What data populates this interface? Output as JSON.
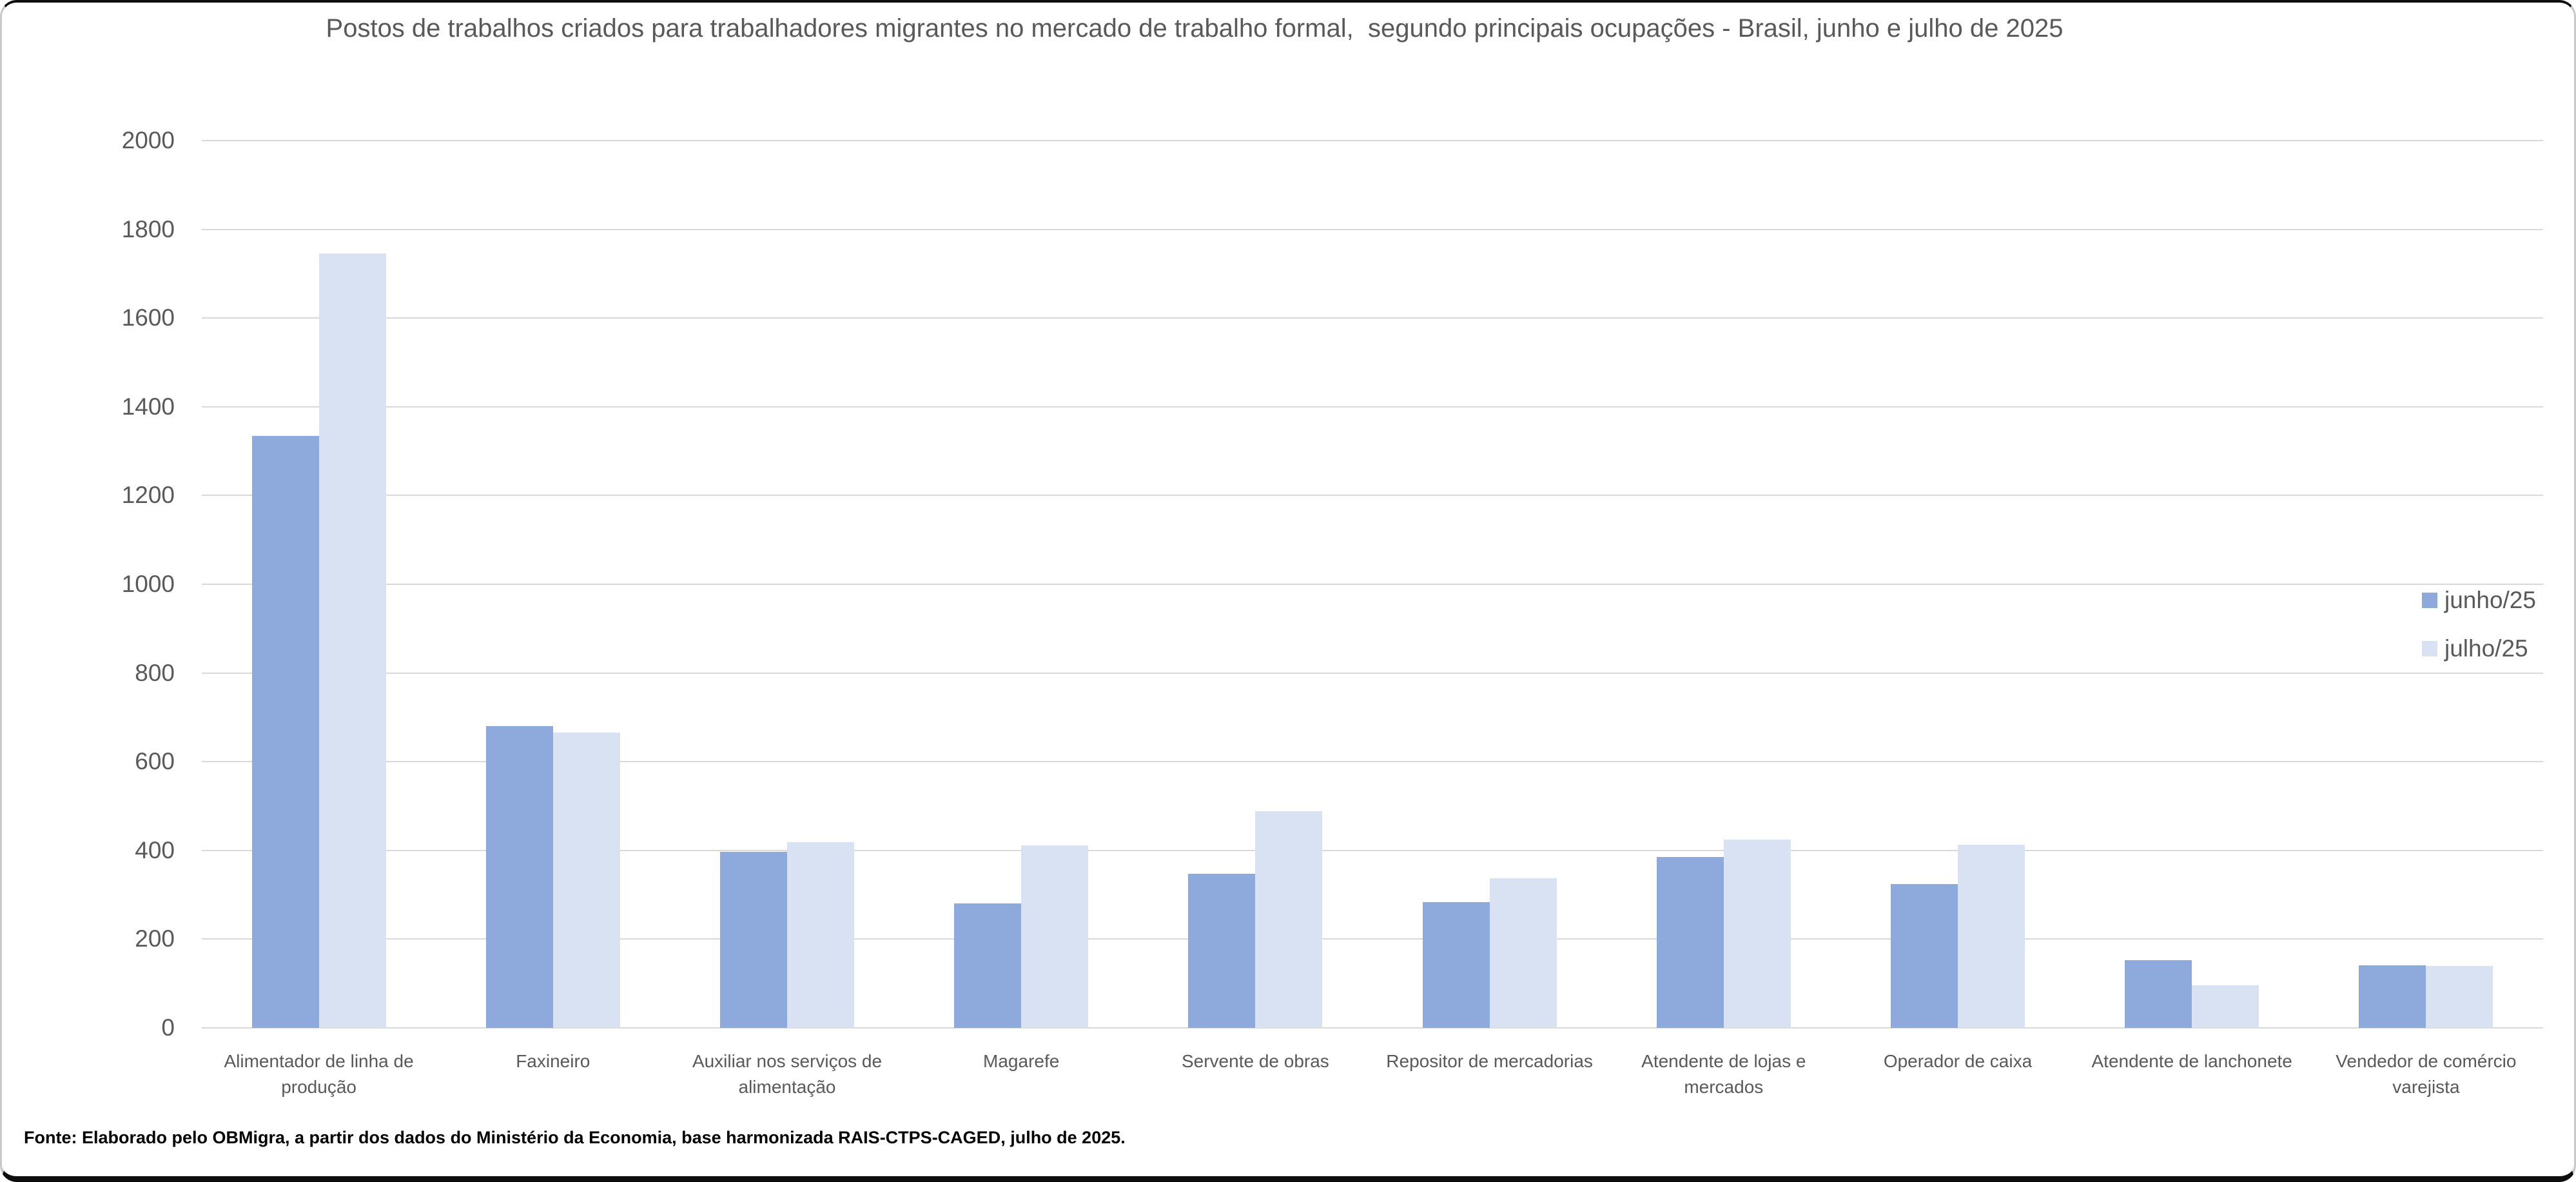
{
  "chart_data": {
    "type": "bar",
    "title": "Postos de trabalhos criados para trabalhadores migrantes no mercado de trabalho formal,  segundo principais ocupações - Brasil, junho e julho de 2025",
    "categories": [
      "Alimentador de linha de produção",
      "Faxineiro",
      "Auxiliar nos serviços de alimentação",
      "Magarefe",
      "Servente de obras",
      "Repositor de mercadorias",
      "Atendente de lojas e mercados",
      "Operador de caixa",
      "Atendente de lanchonete",
      "Vendedor de comércio varejista"
    ],
    "series": [
      {
        "name": "junho/25",
        "color": "#8EA9DB",
        "values": [
          1334,
          680,
          397,
          281,
          347,
          283,
          385,
          324,
          152,
          141
        ]
      },
      {
        "name": "julho/25",
        "color": "#D9E2F3",
        "values": [
          1745,
          666,
          419,
          412,
          488,
          337,
          425,
          413,
          96,
          140
        ]
      }
    ],
    "ylim": [
      0,
      2000
    ],
    "y_ticks": [
      0,
      200,
      400,
      600,
      800,
      1000,
      1200,
      1400,
      1600,
      1800,
      2000
    ],
    "grid": true,
    "legend_position": "right",
    "gridline_color": "#d9d9d9",
    "text_color": "#595959",
    "source_note": "Fonte: Elaborado pelo OBMigra, a partir dos dados do Ministério da Economia, base harmonizada RAIS-CTPS-CAGED, julho de 2025."
  }
}
